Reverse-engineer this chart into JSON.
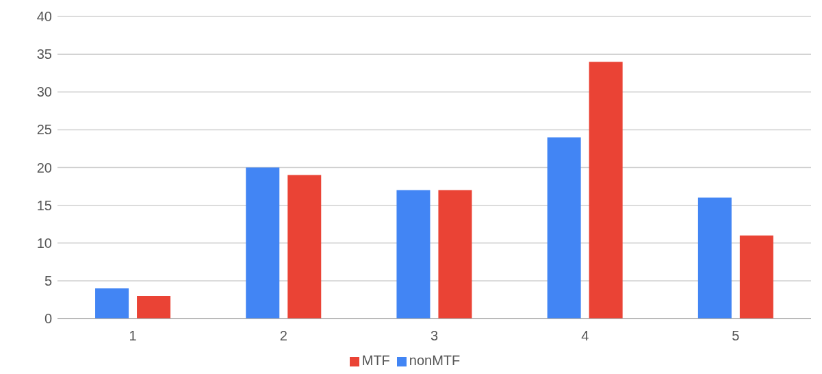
{
  "chart_data": {
    "type": "bar",
    "categories": [
      "1",
      "2",
      "3",
      "4",
      "5"
    ],
    "series": [
      {
        "name": "nonMTF",
        "color": "#4285f4",
        "values": [
          4,
          20,
          17,
          24,
          16
        ]
      },
      {
        "name": "MTF",
        "color": "#ea4335",
        "values": [
          3,
          19,
          17,
          34,
          11
        ]
      }
    ],
    "ylim": [
      0,
      40
    ],
    "yticks": [
      0,
      5,
      10,
      15,
      20,
      25,
      30,
      35,
      40
    ],
    "grid": "y",
    "legend": "bottom"
  }
}
